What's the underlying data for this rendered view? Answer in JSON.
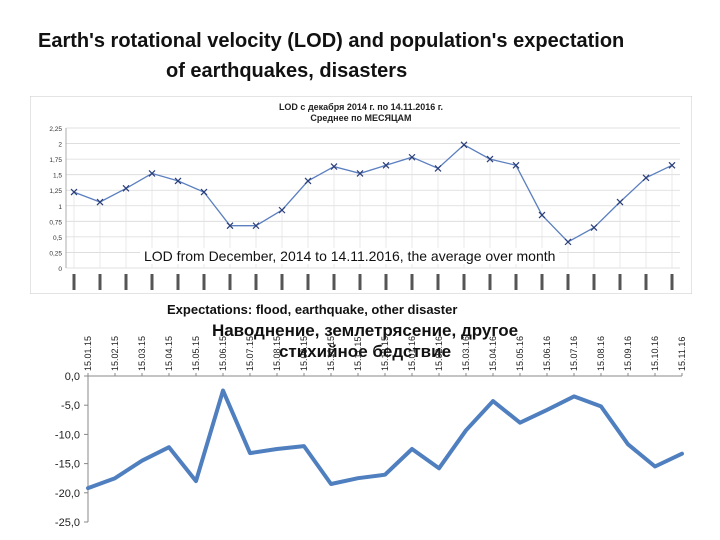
{
  "slide": {
    "title_line1": "Earth's rotational velocity (LOD) and population's expectation",
    "title_line2": "of earthquakes, disasters"
  },
  "captions": {
    "lod_overlay": "LOD from December, 2014 to 14.11.2016, the average over month",
    "expectations": "Expectations: flood, earthquake, other disaster"
  },
  "chart_data": [
    {
      "type": "line",
      "title": "LOD с декабря  2014 г. по 14.11.2016 г.",
      "subtitle": "Среднее по МЕСЯЦАМ",
      "ylim": [
        0,
        2.25
      ],
      "yticks": [
        "0",
        "0,25",
        "0,5",
        "0,75",
        "1",
        "1,25",
        "1,5",
        "1,75",
        "2",
        "2,25"
      ],
      "grid": true,
      "colors": {
        "line": "#5b7fbf",
        "marker": "#2b3f7a",
        "grid": "#d9d9d9"
      },
      "values": [
        1.22,
        1.06,
        1.28,
        1.52,
        1.4,
        1.22,
        0.68,
        0.68,
        0.93,
        1.4,
        1.63,
        1.52,
        1.65,
        1.78,
        1.6,
        1.98,
        1.75,
        1.65,
        0.85,
        0.42,
        0.65,
        1.06,
        1.45,
        1.65
      ]
    },
    {
      "type": "line",
      "title_line1": "Наводнение, землетрясение, другое",
      "title_line2": "стихийное бедствие",
      "categories": [
        "15.01.15",
        "15.02.15",
        "15.03.15",
        "15.04.15",
        "15.05.15",
        "15.06.15",
        "15.07.15",
        "15.08.15",
        "15.09.15",
        "15.10.15",
        "15.11.15",
        "15.12.15",
        "15.01.16",
        "15.02.16",
        "15.03.16",
        "15.04.16",
        "15.05.16",
        "15.06.16",
        "15.07.16",
        "15.08.16",
        "15.09.16",
        "15.10.16",
        "15.11.16"
      ],
      "values": [
        -19.2,
        -17.5,
        -14.5,
        -12.2,
        -18.0,
        -2.5,
        -13.2,
        -12.5,
        -12.0,
        -18.5,
        -17.5,
        -16.9,
        -12.5,
        -15.8,
        -9.3,
        -4.3,
        -8.0,
        -5.8,
        -3.5,
        -5.2,
        -11.7,
        -15.5,
        -13.3
      ],
      "ylim": [
        -25,
        0
      ],
      "yticks": [
        "0,0",
        "-5,0",
        "-10,0",
        "-15,0",
        "-20,0",
        "-25,0"
      ],
      "grid": false,
      "colors": {
        "line": "#4f7fbf",
        "axis": "#888888"
      }
    }
  ]
}
